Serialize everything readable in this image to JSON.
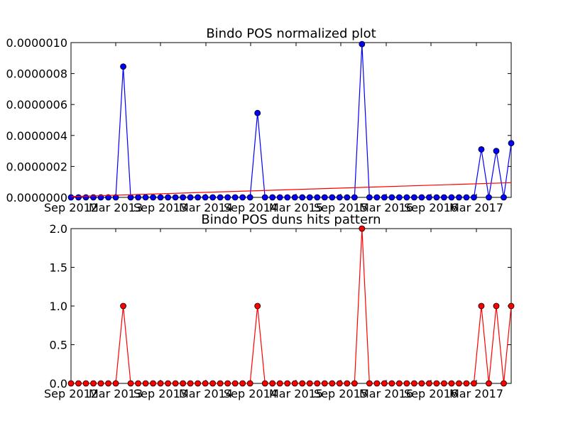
{
  "chart_data": [
    {
      "type": "line",
      "title": "Bindo POS normalized plot",
      "xlabel": "",
      "ylabel": "",
      "x_tick_labels": [
        "Sep 2012",
        "Mar 2013",
        "Sep 2013",
        "Mar 2014",
        "Sep 2014",
        "Mar 2015",
        "Sep 2015",
        "Mar 2016",
        "Sep 2016",
        "Mar 2017"
      ],
      "y_tick_labels": [
        "0.0000000",
        "0.0000002",
        "0.0000004",
        "0.0000006",
        "0.0000008",
        "0.0000010"
      ],
      "ylim": [
        0,
        1e-06
      ],
      "grid": false,
      "series": [
        {
          "color": "#0000ff",
          "marker": "circle",
          "values": [
            0,
            0,
            0,
            0,
            0,
            0,
            0,
            8.45e-07,
            0,
            0,
            0,
            0,
            0,
            0,
            0,
            0,
            0,
            0,
            0,
            0,
            0,
            0,
            0,
            0,
            0,
            5.45e-07,
            0,
            0,
            0,
            0,
            0,
            0,
            0,
            0,
            0,
            0,
            0,
            0,
            0,
            9.9e-07,
            0,
            0,
            0,
            0,
            0,
            0,
            0,
            0,
            0,
            0,
            0,
            0,
            0,
            0,
            0,
            3.1e-07,
            0,
            3e-07,
            0,
            3.5e-07
          ]
        },
        {
          "color": "#ff0000",
          "marker": "none",
          "start": 5e-09,
          "end": 9.5e-08
        }
      ]
    },
    {
      "type": "line",
      "title": "Bindo POS duns hits pattern",
      "xlabel": "",
      "ylabel": "",
      "x_tick_labels": [
        "Sep 2012",
        "Mar 2013",
        "Sep 2013",
        "Mar 2014",
        "Sep 2014",
        "Mar 2015",
        "Sep 2015",
        "Mar 2016",
        "Sep 2016",
        "Mar 2017"
      ],
      "y_tick_labels": [
        "0.0",
        "0.5",
        "1.0",
        "1.5",
        "2.0"
      ],
      "ylim": [
        0,
        2
      ],
      "grid": false,
      "series": [
        {
          "color": "#ff0000",
          "marker": "circle",
          "values": [
            0,
            0,
            0,
            0,
            0,
            0,
            0,
            1,
            0,
            0,
            0,
            0,
            0,
            0,
            0,
            0,
            0,
            0,
            0,
            0,
            0,
            0,
            0,
            0,
            0,
            1,
            0,
            0,
            0,
            0,
            0,
            0,
            0,
            0,
            0,
            0,
            0,
            0,
            0,
            2,
            0,
            0,
            0,
            0,
            0,
            0,
            0,
            0,
            0,
            0,
            0,
            0,
            0,
            0,
            0,
            1,
            0,
            1,
            0,
            1
          ]
        }
      ]
    }
  ]
}
